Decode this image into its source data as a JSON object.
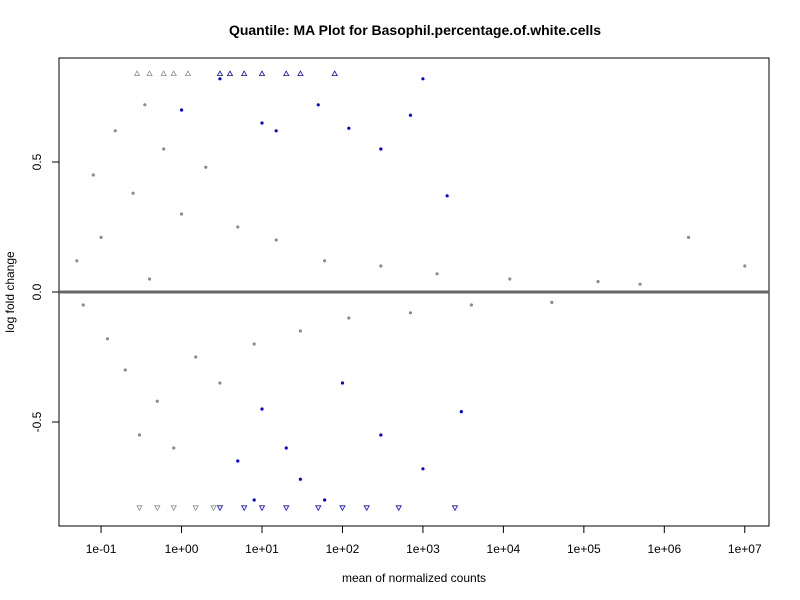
{
  "chart_data": {
    "type": "scatter",
    "title": "Quantile: MA Plot for Basophil.percentage.of.white.cells",
    "xlabel": "mean of normalized counts",
    "ylabel": "log fold change",
    "x_scale": "log10",
    "xlim": [
      0.03,
      20000000
    ],
    "ylim": [
      -0.9,
      0.9
    ],
    "x_ticks": [
      {
        "value": 0.1,
        "label": "1e-01"
      },
      {
        "value": 1,
        "label": "1e+00"
      },
      {
        "value": 10,
        "label": "1e+01"
      },
      {
        "value": 100,
        "label": "1e+02"
      },
      {
        "value": 1000,
        "label": "1e+03"
      },
      {
        "value": 10000,
        "label": "1e+04"
      },
      {
        "value": 100000,
        "label": "1e+05"
      },
      {
        "value": 1000000,
        "label": "1e+06"
      },
      {
        "value": 10000000,
        "label": "1e+07"
      }
    ],
    "y_ticks": [
      {
        "value": -0.5,
        "label": "-0.5"
      },
      {
        "value": 0.0,
        "label": "0.0"
      },
      {
        "value": 0.5,
        "label": "0.5"
      }
    ],
    "hline": {
      "y": 0,
      "color": "#666666"
    },
    "grid": false,
    "legend": "none",
    "series": [
      {
        "color": "#8c8c8c",
        "marker": "point",
        "points": [
          [
            0.05,
            0.12
          ],
          [
            0.06,
            -0.05
          ],
          [
            0.08,
            0.45
          ],
          [
            0.1,
            0.21
          ],
          [
            0.12,
            -0.18
          ],
          [
            0.15,
            0.62
          ],
          [
            0.2,
            -0.3
          ],
          [
            0.25,
            0.38
          ],
          [
            0.3,
            -0.55
          ],
          [
            0.35,
            0.72
          ],
          [
            0.4,
            0.05
          ],
          [
            0.5,
            -0.42
          ],
          [
            0.6,
            0.55
          ],
          [
            0.8,
            -0.6
          ],
          [
            1.0,
            0.3
          ],
          [
            1.5,
            -0.25
          ],
          [
            2.0,
            0.48
          ],
          [
            3.0,
            -0.35
          ],
          [
            5.0,
            0.25
          ],
          [
            8.0,
            -0.2
          ],
          [
            15,
            0.2
          ],
          [
            30,
            -0.15
          ],
          [
            60,
            0.12
          ],
          [
            120,
            -0.1
          ],
          [
            300,
            0.1
          ],
          [
            700,
            -0.08
          ],
          [
            1500,
            0.07
          ],
          [
            4000,
            -0.05
          ],
          [
            12000,
            0.05
          ],
          [
            40000,
            -0.04
          ],
          [
            150000,
            0.04
          ],
          [
            500000,
            0.03
          ],
          [
            2000000,
            0.21
          ],
          [
            10000000,
            0.1
          ]
        ]
      },
      {
        "color": "#0000ff",
        "marker": "point",
        "points": [
          [
            1.0,
            0.7
          ],
          [
            3.0,
            0.82
          ],
          [
            10,
            0.65
          ],
          [
            15,
            0.62
          ],
          [
            50,
            0.72
          ],
          [
            120,
            0.63
          ],
          [
            300,
            0.55
          ],
          [
            700,
            0.68
          ],
          [
            1000,
            0.82
          ],
          [
            2000,
            0.37
          ],
          [
            10,
            -0.45
          ],
          [
            20,
            -0.6
          ],
          [
            30,
            -0.72
          ],
          [
            100,
            -0.35
          ],
          [
            300,
            -0.55
          ],
          [
            1000,
            -0.68
          ],
          [
            3000,
            -0.46
          ],
          [
            5,
            -0.65
          ],
          [
            60,
            -0.8
          ],
          [
            8,
            -0.8
          ]
        ]
      },
      {
        "color": "#8c8c8c",
        "marker": "triangle-up",
        "points": [
          [
            0.28,
            0.84
          ],
          [
            0.4,
            0.84
          ],
          [
            0.6,
            0.84
          ],
          [
            0.8,
            0.84
          ],
          [
            1.2,
            0.84
          ]
        ]
      },
      {
        "color": "#0000ff",
        "marker": "triangle-up",
        "points": [
          [
            3,
            0.84
          ],
          [
            4,
            0.84
          ],
          [
            6,
            0.84
          ],
          [
            10,
            0.84
          ],
          [
            20,
            0.84
          ],
          [
            30,
            0.84
          ],
          [
            80,
            0.84
          ]
        ]
      },
      {
        "color": "#8c8c8c",
        "marker": "triangle-down",
        "points": [
          [
            0.3,
            -0.83
          ],
          [
            0.5,
            -0.83
          ],
          [
            0.8,
            -0.83
          ],
          [
            1.5,
            -0.83
          ],
          [
            2.5,
            -0.83
          ]
        ]
      },
      {
        "color": "#0000ff",
        "marker": "triangle-down",
        "points": [
          [
            3,
            -0.83
          ],
          [
            6,
            -0.83
          ],
          [
            10,
            -0.83
          ],
          [
            20,
            -0.83
          ],
          [
            50,
            -0.83
          ],
          [
            100,
            -0.83
          ],
          [
            200,
            -0.83
          ],
          [
            500,
            -0.83
          ],
          [
            2500,
            -0.83
          ]
        ]
      }
    ]
  }
}
